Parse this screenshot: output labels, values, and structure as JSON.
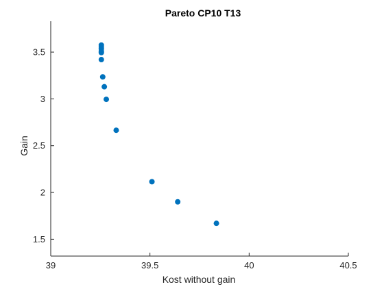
{
  "chart_data": {
    "type": "scatter",
    "title": "Pareto CP10 T13",
    "xlabel": "Kost without gain",
    "ylabel": "Gain",
    "xlim": [
      39,
      40.5
    ],
    "ylim": [
      1.32,
      3.83
    ],
    "xticks": [
      39,
      39.5,
      40,
      40.5
    ],
    "xtick_labels": [
      "39",
      "39.5",
      "40",
      "40.5"
    ],
    "yticks": [
      1.5,
      2,
      2.5,
      3,
      3.5
    ],
    "ytick_labels": [
      "1.5",
      "2",
      "2.5",
      "3",
      "3.5"
    ],
    "grid": false,
    "series": [
      {
        "color": "#0072BD",
        "marker": "filled-circle",
        "points": [
          {
            "x": 39.255,
            "y": 3.575
          },
          {
            "x": 39.255,
            "y": 3.555
          },
          {
            "x": 39.255,
            "y": 3.535
          },
          {
            "x": 39.255,
            "y": 3.51
          },
          {
            "x": 39.255,
            "y": 3.495
          },
          {
            "x": 39.255,
            "y": 3.42
          },
          {
            "x": 39.262,
            "y": 3.235
          },
          {
            "x": 39.27,
            "y": 3.13
          },
          {
            "x": 39.28,
            "y": 2.995
          },
          {
            "x": 39.33,
            "y": 2.665
          },
          {
            "x": 39.51,
            "y": 2.115
          },
          {
            "x": 39.64,
            "y": 1.9
          },
          {
            "x": 39.835,
            "y": 1.67
          }
        ]
      }
    ]
  }
}
